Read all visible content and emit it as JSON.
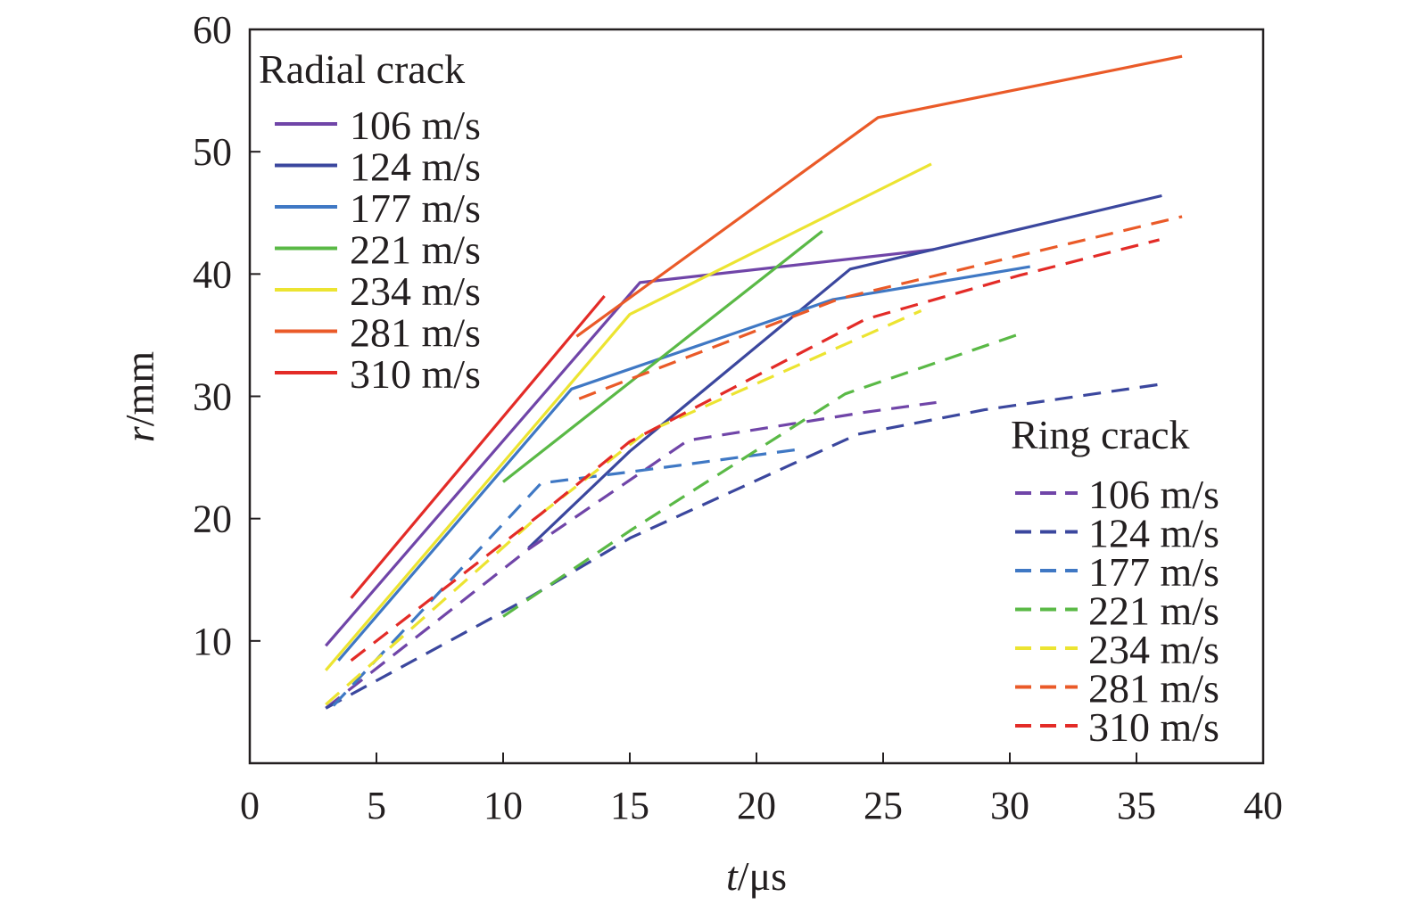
{
  "chart_data": {
    "type": "line",
    "xlabel_var": "t",
    "xlabel_unit": "/μs",
    "ylabel_var": "r",
    "ylabel_unit": "/mm",
    "xlim": [
      0,
      40
    ],
    "ylim": [
      0,
      60
    ],
    "xticks": [
      0,
      5,
      10,
      15,
      20,
      25,
      30,
      35,
      40
    ],
    "yticks": [
      10,
      20,
      30,
      40,
      50,
      60
    ],
    "grid": false,
    "legend_groups": [
      {
        "title": "Radial crack",
        "placement": "top-left",
        "style": "solid"
      },
      {
        "title": "Ring crack",
        "placement": "bottom-right",
        "style": "dashed"
      }
    ],
    "series": [
      {
        "group": 0,
        "name": "106 m/s",
        "color": "#7045a8",
        "dashed": false,
        "x": [
          3,
          15.4,
          27
        ],
        "y": [
          9.6,
          39.3,
          42
        ]
      },
      {
        "group": 0,
        "name": "124 m/s",
        "color": "#3b479e",
        "dashed": false,
        "x": [
          11,
          15,
          23.7,
          36
        ],
        "y": [
          17.6,
          25.5,
          40.4,
          46.4
        ]
      },
      {
        "group": 0,
        "name": "177 m/s",
        "color": "#3f78c4",
        "dashed": false,
        "x": [
          3.5,
          12.7,
          23,
          30.8
        ],
        "y": [
          8.4,
          30.6,
          37.9,
          40.6
        ]
      },
      {
        "group": 0,
        "name": "221 m/s",
        "color": "#5ab946",
        "dashed": false,
        "x": [
          10,
          22.6
        ],
        "y": [
          23,
          43.5
        ]
      },
      {
        "group": 0,
        "name": "234 m/s",
        "color": "#ece431",
        "dashed": false,
        "x": [
          3,
          15,
          26.9
        ],
        "y": [
          7.6,
          36.7,
          49
        ]
      },
      {
        "group": 0,
        "name": "281 m/s",
        "color": "#ea5a28",
        "dashed": false,
        "x": [
          12.9,
          24.8,
          36.8
        ],
        "y": [
          34.9,
          52.8,
          57.8
        ]
      },
      {
        "group": 0,
        "name": "310 m/s",
        "color": "#e32b27",
        "dashed": false,
        "x": [
          4,
          14
        ],
        "y": [
          13.5,
          38.2
        ]
      },
      {
        "group": 1,
        "name": "106 m/s",
        "color": "#7045a8",
        "dashed": true,
        "x": [
          3,
          11,
          17.3,
          24.3,
          27.1
        ],
        "y": [
          4.5,
          17.5,
          26.4,
          28.7,
          29.5
        ]
      },
      {
        "group": 1,
        "name": "124 m/s",
        "color": "#3b479e",
        "dashed": true,
        "x": [
          3,
          11,
          15,
          24,
          29,
          36
        ],
        "y": [
          4.5,
          13.5,
          18.4,
          26.9,
          28.9,
          31
        ]
      },
      {
        "group": 1,
        "name": "177 m/s",
        "color": "#3f78c4",
        "dashed": true,
        "x": [
          3.3,
          11.5,
          15.3,
          21.8
        ],
        "y": [
          4.7,
          22.9,
          23.9,
          25.7
        ]
      },
      {
        "group": 1,
        "name": "221 m/s",
        "color": "#5ab946",
        "dashed": true,
        "x": [
          10,
          15,
          23.5,
          30.4
        ],
        "y": [
          12,
          19,
          30.2,
          35.1
        ]
      },
      {
        "group": 1,
        "name": "234 m/s",
        "color": "#ece431",
        "dashed": true,
        "x": [
          3,
          11.5,
          15.6,
          26.5
        ],
        "y": [
          4.8,
          20.4,
          27,
          37
        ]
      },
      {
        "group": 1,
        "name": "281 m/s",
        "color": "#ea5a28",
        "dashed": true,
        "x": [
          13,
          23.3,
          36.8
        ],
        "y": [
          29.8,
          38,
          44.7
        ]
      },
      {
        "group": 1,
        "name": "310 m/s",
        "color": "#e32b27",
        "dashed": true,
        "x": [
          4,
          11.5,
          15,
          24.3,
          30.4,
          35.9
        ],
        "y": [
          8.4,
          20.4,
          26.3,
          36.3,
          39.9,
          42.8
        ]
      }
    ]
  }
}
